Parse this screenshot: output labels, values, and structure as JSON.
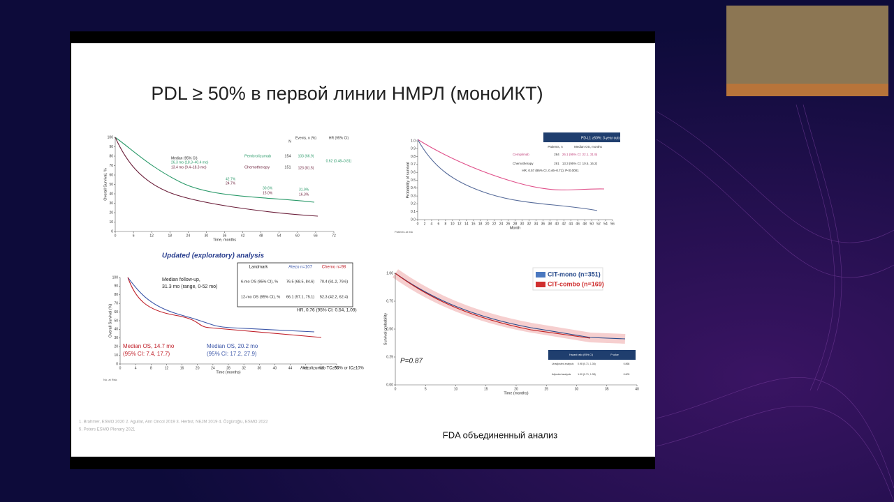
{
  "slide": {
    "title": "PDL ≥ 50% в первой линии НМРЛ (моноИКТ)",
    "caption": "FDA объединенный анализ",
    "references": [
      "1. Brahmer, ESMO 2020 2. Aguilar, Ann Oncol 2019 3. Herbst, NEJM 2019 4. Özgüroğlu, ESMO 2022",
      "5. Peters ESMO Plenary 2021"
    ]
  },
  "panels": [
    {
      "xlabel": "Time, months",
      "ylabel": "Overall Survival, %",
      "xlim": [
        0,
        72
      ],
      "ylim": [
        0,
        100
      ],
      "xticks": [
        0,
        6,
        12,
        18,
        24,
        30,
        36,
        42,
        48,
        54,
        60,
        66,
        72
      ],
      "yticks": [
        0,
        10,
        20,
        30,
        40,
        50,
        60,
        70,
        80,
        90,
        100
      ],
      "texts": [
        "Median (95% CI)",
        "26.3 mo (18.3–40.4 mo)",
        "13.4 mo (9.4–18.3 mo)",
        "Events, n (%)",
        "HR (95% CI)",
        "N",
        "Pembrolizumab",
        "154",
        "103 (66.9)",
        "0.62 (0.48–0.81)",
        "Chemotherapy",
        "151",
        "123 (81.5)",
        "42.7%",
        "24.7%",
        "30.6%",
        "15.0%",
        "31.9%",
        "16.3%"
      ]
    },
    {
      "xlabel": "Month",
      "ylabel": "Probability of survival",
      "xlim": [
        0,
        56
      ],
      "ylim": [
        0,
        1
      ],
      "xticks": [
        0,
        2,
        4,
        6,
        8,
        10,
        12,
        14,
        16,
        18,
        20,
        22,
        24,
        26,
        28,
        30,
        32,
        34,
        36,
        38,
        40,
        42,
        44,
        46,
        48,
        50,
        52,
        54,
        56
      ],
      "yticks": [
        {
          "value": 0,
          "label": "0.0"
        },
        {
          "value": 0.1,
          "label": "0.1"
        },
        {
          "value": 0.2,
          "label": "0.2"
        },
        {
          "value": 0.3,
          "label": "0.3"
        },
        {
          "value": 0.4,
          "label": "0.4"
        },
        {
          "value": 0.5,
          "label": "0.5"
        },
        {
          "value": 0.6,
          "label": "0.6"
        },
        {
          "value": 0.7,
          "label": "0.7"
        },
        {
          "value": 0.8,
          "label": "0.8"
        },
        {
          "value": 0.9,
          "label": "0.9"
        },
        {
          "value": 1,
          "label": "1.0"
        }
      ],
      "texts": [
        "PD-L1 ≥50%: 3-year outcomes",
        "Patients, n",
        "Median OS, months",
        "Cemiplimab",
        "284",
        "26.1 (95% CI: 22.1, 31.9)",
        "Chemotherapy",
        "281",
        "13.3 (95% CI: 10.5, 16.2)",
        "HR, 0.57 (95% CI, 0.46–0.71); P<0.0001",
        "Patients at risk"
      ]
    },
    {
      "xlabel": "Time (months)",
      "ylabel": "Overall Survival (%)",
      "xlim": [
        0,
        56
      ],
      "ylim": [
        0,
        100
      ],
      "xticks": [
        0,
        4,
        8,
        12,
        16,
        20,
        24,
        28,
        32,
        36,
        40,
        44,
        48,
        52,
        56
      ],
      "yticks": [
        0,
        10,
        20,
        30,
        40,
        50,
        60,
        70,
        80,
        90,
        100
      ],
      "heading": "Updated (exploratory) analysis",
      "texts": [
        "Median follow-up,",
        "31.3 mo (range, 0-52 mo)",
        "Landmark",
        "Atezo n=107",
        "Chemo n=98",
        "6-mo OS (95% CI), %",
        "76.5 (68.5, 84.6)",
        "70.4 (61.2, 79.6)",
        "12-mo OS (95% CI), %",
        "66.1 (57.1, 75.1)",
        "52.3 (42.2, 62.4)",
        "HR, 0.76 (95% CI: 0.54, 1.09)",
        "Median OS, 14.7 mo",
        "(95% CI: 7.4, 17.7)",
        "Median OS, 20.2 mo",
        "(95% CI: 17.2, 27.9)",
        "Atezolizumab TC≥50% or IC≥10%",
        "No. at Risk"
      ]
    },
    {
      "xlabel": "Time (months)",
      "ylabel": "Survival probability",
      "xlim": [
        0,
        40
      ],
      "ylim": [
        0,
        1
      ],
      "xticks": [
        0,
        5,
        10,
        15,
        20,
        25,
        30,
        35,
        40
      ],
      "yticks": [
        {
          "value": 0,
          "label": "0.00"
        },
        {
          "value": 0.25,
          "label": "0.25"
        },
        {
          "value": 0.5,
          "label": "0.50"
        },
        {
          "value": 0.75,
          "label": "0.75"
        },
        {
          "value": 1,
          "label": "1.00"
        }
      ],
      "legend": [
        "CIT-mono (n=351)",
        "CIT-combo (n=169)"
      ],
      "texts": [
        "P=0.87",
        "Hazard ratio (95% CI)",
        "P value",
        "Unadjusted analysis",
        "0.98 (0.71, 1.36)",
        "0.868",
        "Adjusted analysis",
        "1.00 (0.71, 1.38)",
        "0.603"
      ]
    }
  ]
}
